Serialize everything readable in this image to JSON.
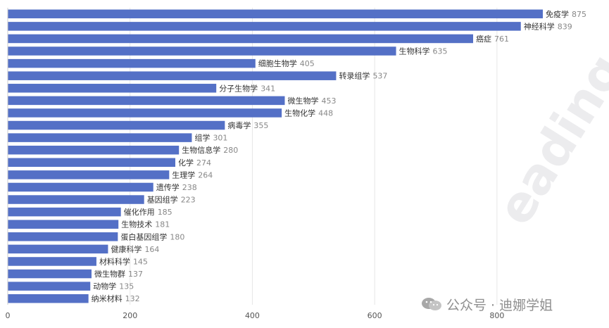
{
  "chart_data": {
    "type": "bar",
    "orientation": "horizontal",
    "categories": [
      "免疫学",
      "神经科学",
      "癌症",
      "生物科学",
      "细胞生物学",
      "转录组学",
      "分子生物学",
      "微生物学",
      "生物化学",
      "病毒学",
      "组学",
      "生物信息学",
      "化学",
      "生理学",
      "遗传学",
      "基因组学",
      "催化作用",
      "生物技术",
      "蛋白基因组学",
      "健康科学",
      "材料科学",
      "微生物群",
      "动物学",
      "纳米材料"
    ],
    "values": [
      875,
      839,
      761,
      635,
      405,
      537,
      341,
      453,
      448,
      355,
      301,
      280,
      274,
      264,
      238,
      223,
      185,
      181,
      180,
      164,
      145,
      137,
      135,
      132
    ],
    "x_ticks": [
      0,
      200,
      400,
      600,
      800
    ],
    "xlim": [
      0,
      880
    ],
    "grid": true,
    "bar_color": "#5470c6"
  },
  "watermark": {
    "text": "公众号 · 迪娜学姐",
    "decoration": "eading"
  }
}
